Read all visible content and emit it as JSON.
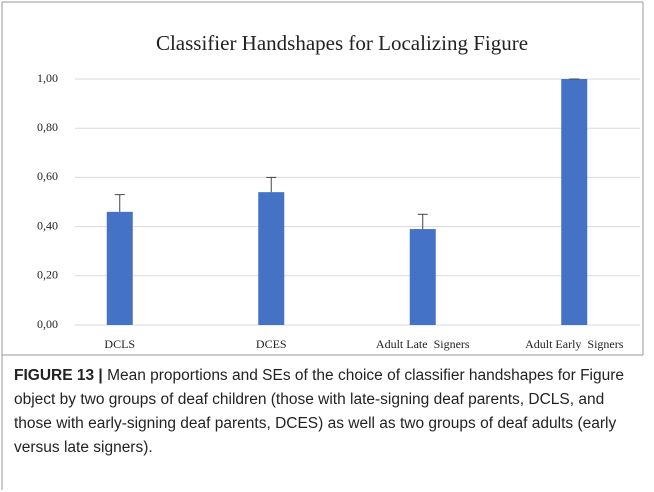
{
  "chart_data": {
    "type": "bar",
    "title": "Classifier Handshapes for Localizing Figure",
    "categories": [
      "DCLS",
      "DCES",
      "Adult Late  Signers",
      "Adult Early  Signers"
    ],
    "values": [
      0.46,
      0.54,
      0.39,
      1.0
    ],
    "errors": [
      0.07,
      0.06,
      0.06,
      0
    ],
    "color": "#4472c4",
    "ylim": [
      0,
      1
    ],
    "yticks": [
      {
        "value": 0,
        "label": "0,00"
      },
      {
        "value": 0.2,
        "label": "0,20"
      },
      {
        "value": 0.4,
        "label": "0,40"
      },
      {
        "value": 0.6,
        "label": "0,60"
      },
      {
        "value": 0.8,
        "label": "0,80"
      },
      {
        "value": 1,
        "label": "1,00"
      }
    ],
    "grid": true
  },
  "caption": {
    "label": "FIGURE 13 |",
    "text": "Mean proportions and SEs of the choice of classifier handshapes for Figure object by two groups of deaf children (those with late-signing deaf parents, DCLS, and those with early-signing deaf parents, DCES) as well as two groups of deaf adults (early versus late signers)."
  }
}
